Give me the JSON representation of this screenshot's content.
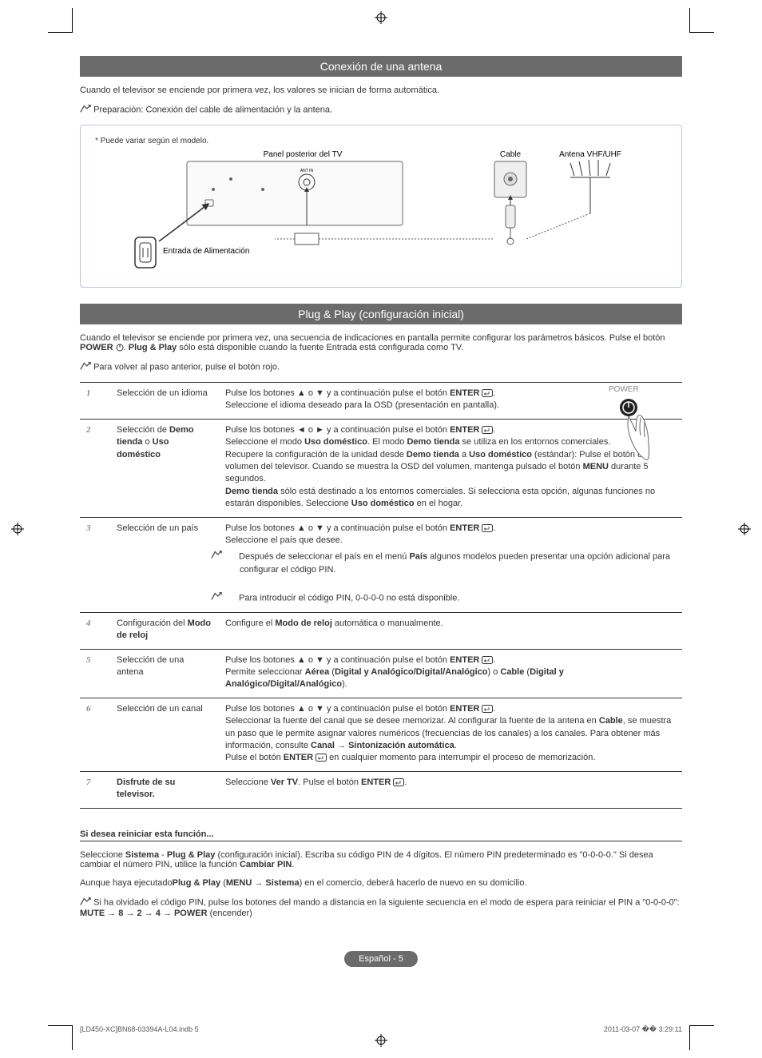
{
  "crop_marks": true,
  "section1": {
    "title": "Conexión de una antena",
    "intro": "Cuando el televisor se enciende por primera vez, los valores se inician de forma automática.",
    "prep_note": "Preparación: Conexión del cable de alimentación y la antena."
  },
  "diagram": {
    "note": "* Puede variar según el modelo.",
    "label_panel": "Panel posterior del TV",
    "label_power": "Entrada de Alimentación",
    "label_cable": "Cable",
    "label_antenna": "Antena VHF/UHF",
    "ant_in": "ANT IN"
  },
  "section2": {
    "title": "Plug & Play (configuración inicial)",
    "intro_a": "Cuando el televisor se enciende por primera vez, una secuencia de indicaciones en pantalla permite configurar los parámetros básicos. Pulse el botón ",
    "intro_b": "POWER",
    "intro_c": ". ",
    "intro_d": "Plug & Play",
    "intro_e": " sólo está disponible cuando la fuente Entrada está configurada como TV.",
    "back_note": "Para volver al paso anterior, pulse el botón rojo.",
    "power_label": "POWER"
  },
  "steps": [
    {
      "num": "1",
      "label": "Selección de un idioma",
      "body_html": "Pulse los botones ▲ o ▼ y a continuación pulse el botón <b>ENTER</b> <span class='enter-icon'></span>.<br>Seleccione el idioma deseado para la OSD (presentación en pantalla)."
    },
    {
      "num": "2",
      "label_html": "Selección de <b>Demo tienda</b> o <b>Uso doméstico</b>",
      "body_html": "Pulse los botones ◄ o ► y a continuación pulse el botón <b>ENTER</b> <span class='enter-icon'></span>.<br>Seleccione el modo <b>Uso doméstico</b>. El modo <b>Demo tienda</b> se utiliza en los entornos comerciales.<br>Recupere la configuración de la unidad desde <b>Demo tienda</b> a <b>Uso doméstico</b> (estándar): Pulse el botón del volumen del televisor. Cuando se muestra la OSD del volumen, mantenga pulsado el botón <b>MENU</b> durante 5 segundos.<br><b>Demo tienda</b> sólo está destinado a los entornos comerciales. Si selecciona esta opción, algunas funciones no estarán disponibles. Seleccione <b>Uso doméstico</b> en el hogar."
    },
    {
      "num": "3",
      "label": "Selección de un país",
      "body_html": "Pulse los botones ▲ o ▼ y a continuación pulse el botón <b>ENTER</b> <span class='enter-icon'></span>.<br>Seleccione el país que desee.<br><span class='note-line'><span class='note-icon' data-name='note-icon'></span> Después de seleccionar el país en el menú <b>País</b> algunos modelos pueden presentar una opción adicional para configurar el código PIN.</span><br><span class='note-line'><span class='note-icon' data-name='note-icon'></span> Para introducir el código PIN, 0-0-0-0 no está disponible.</span>"
    },
    {
      "num": "4",
      "label_html": "Configuración del <b>Modo de reloj</b>",
      "body_html": "Configure el <b>Modo de reloj</b> automática o manualmente."
    },
    {
      "num": "5",
      "label": "Selección de una antena",
      "body_html": "Pulse los botones ▲ o ▼ y a continuación pulse el botón <b>ENTER</b> <span class='enter-icon'></span>.<br>Permite seleccionar <b>Aérea</b> (<b>Digital y Analógico/Digital/Analógico</b>) o <b>Cable</b> (<b>Digital y Analógico/Digital/Analógico</b>)."
    },
    {
      "num": "6",
      "label": "Selección de un canal",
      "body_html": "Pulse los botones ▲ o ▼ y a continuación pulse el botón <b>ENTER</b> <span class='enter-icon'></span>.<br>Seleccionar la fuente del canal que se desee memorizar. Al configurar la fuente de la antena en <b>Cable</b>, se muestra un paso que le permite asignar valores numéricos (frecuencias de los canales) a los canales. Para obtener más información, consulte <b>Canal → Sintonización automática</b>.<br>Pulse el botón <b>ENTER</b> <span class='enter-icon'></span> en cualquier momento para interrumpir el proceso de memorización."
    },
    {
      "num": "7",
      "label_html": "<b>Disfrute de su televisor.</b>",
      "body_html": "Seleccione <b>Ver TV</b>. Pulse el botón <b>ENTER</b> <span class='enter-icon'></span>."
    }
  ],
  "reset": {
    "heading": "Si desea reiniciar esta función...",
    "p1_html": "Seleccione <b>Sistema</b> - <b>Plug & Play</b> (configuración inicial). Escriba su código PIN de 4 dígitos. El número PIN predeterminado es \"0-0-0-0.\" Si desea cambiar el número PIN, utilice la función <b>Cambiar PIN</b>.",
    "p2_html": "Aunque haya ejecutado<b>Plug & Play</b> (<b>MENU → Sistema</b>) en el comercio, deberá hacerlo de nuevo en su domicilio.",
    "note_html": "Si ha olvidado el código PIN, pulse los botones del mando a distancia en la siguiente secuencia en el modo de espera para reiniciar el PIN a \"0-0-0-0\": <b>MUTE → 8 → 2 → 4 → POWER</b> (encender)"
  },
  "page_badge": "Español - 5",
  "footer": {
    "left": "[LD450-XC]BN68-03394A-L04.indb   5",
    "right": "2011-03-07   �� 3:29:11"
  },
  "colors": {
    "bar": "#6b6b6b",
    "num": "#7c8a9e",
    "box_border": "#b8c6dc"
  }
}
